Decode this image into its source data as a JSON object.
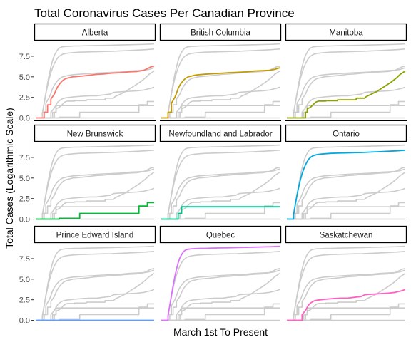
{
  "chart_data": {
    "type": "line",
    "title": "Total Coronavirus Cases Per Canadian Province",
    "xlabel": "March 1st To Present",
    "ylabel": "Total Cases (Logarithmic Scale)",
    "ylim": [
      -0.3,
      9.4
    ],
    "yticks": [
      0.0,
      2.5,
      5.0,
      7.5
    ],
    "ytick_labels": [
      "0.0",
      "2.5",
      "5.0",
      "7.5"
    ],
    "xlim": [
      0,
      70
    ],
    "background_color": "#cccccc",
    "panels": [
      {
        "name": "Alberta",
        "color": "#f8766d",
        "x": [
          0,
          5,
          5,
          7,
          7,
          9,
          9,
          11,
          12,
          13,
          14,
          15,
          16,
          17,
          18,
          20,
          22,
          25,
          28,
          32,
          36,
          40,
          45,
          50,
          55,
          60,
          64,
          66,
          68,
          70
        ],
        "y": [
          0,
          0,
          0.7,
          0.7,
          1.6,
          1.6,
          2.3,
          2.9,
          3.4,
          3.8,
          4.1,
          4.35,
          4.55,
          4.7,
          4.8,
          4.9,
          5.0,
          5.05,
          5.1,
          5.2,
          5.3,
          5.35,
          5.45,
          5.5,
          5.6,
          5.65,
          5.8,
          6.0,
          6.2,
          6.3
        ]
      },
      {
        "name": "British Columbia",
        "color": "#c49a00",
        "x": [
          0,
          4,
          4,
          6,
          6,
          8,
          9,
          10,
          11,
          12,
          13,
          14,
          15,
          16,
          18,
          20,
          22,
          25,
          28,
          32,
          36,
          40,
          45,
          50,
          55,
          60,
          64,
          67,
          70
        ],
        "y": [
          0,
          0,
          0.7,
          0.7,
          1.8,
          2.5,
          3.0,
          3.6,
          4.0,
          4.3,
          4.55,
          4.75,
          4.9,
          5.0,
          5.1,
          5.2,
          5.25,
          5.3,
          5.35,
          5.4,
          5.45,
          5.5,
          5.55,
          5.6,
          5.7,
          5.75,
          5.8,
          5.9,
          6.1
        ]
      },
      {
        "name": "Manitoba",
        "color": "#8da200",
        "x": [
          0,
          11,
          11,
          12,
          12,
          14,
          15,
          16,
          17,
          18,
          19,
          20,
          23,
          23,
          30,
          30,
          40,
          41,
          41,
          46,
          47,
          50,
          53,
          56,
          59,
          62,
          65,
          67,
          70
        ],
        "y": [
          0,
          0,
          0.7,
          0.7,
          1.1,
          1.3,
          1.5,
          1.7,
          1.9,
          2.0,
          2.05,
          2.05,
          2.05,
          2.1,
          2.1,
          2.2,
          2.2,
          2.2,
          2.4,
          2.4,
          2.6,
          2.9,
          3.2,
          3.6,
          4.0,
          4.4,
          4.9,
          5.3,
          5.7
        ]
      },
      {
        "name": "New Brunswick",
        "color": "#00ba38",
        "x": [
          0,
          14,
          14,
          26,
          26,
          61,
          61,
          66,
          66,
          70
        ],
        "y": [
          0,
          0,
          0.1,
          0.1,
          0.7,
          0.7,
          1.6,
          1.6,
          2.0,
          2.0
        ]
      },
      {
        "name": "Newfoundland and Labrador",
        "color": "#00c08b",
        "x": [
          0,
          10,
          10,
          12,
          12,
          70
        ],
        "y": [
          0,
          0,
          0.7,
          0.7,
          1.5,
          1.5
        ]
      },
      {
        "name": "Ontario",
        "color": "#00a9e0",
        "x": [
          0,
          4,
          4,
          5,
          6,
          7,
          8,
          9,
          10,
          11,
          12,
          13,
          14,
          15,
          16,
          18,
          20,
          23,
          26,
          30,
          35,
          40,
          45,
          50,
          55,
          60,
          65,
          70
        ],
        "y": [
          0,
          0,
          0.6,
          1.8,
          2.9,
          3.9,
          4.8,
          5.5,
          6.1,
          6.6,
          7.0,
          7.3,
          7.5,
          7.65,
          7.75,
          7.85,
          7.9,
          7.95,
          8.0,
          8.02,
          8.05,
          8.08,
          8.1,
          8.15,
          8.2,
          8.25,
          8.3,
          8.38
        ]
      },
      {
        "name": "Prince Edward Island",
        "color": "#619cff",
        "x": [
          0,
          70
        ],
        "y": [
          0,
          0
        ]
      },
      {
        "name": "Quebec",
        "color": "#db72fb",
        "x": [
          0,
          4,
          4,
          5,
          6,
          7,
          8,
          9,
          10,
          11,
          12,
          13,
          14,
          15,
          16,
          18,
          20,
          23,
          26,
          30,
          35,
          40,
          45,
          50,
          55,
          60,
          65,
          70
        ],
        "y": [
          0,
          0,
          0.6,
          1.8,
          3.0,
          4.2,
          5.3,
          6.2,
          7.0,
          7.6,
          8.0,
          8.3,
          8.5,
          8.6,
          8.65,
          8.7,
          8.72,
          8.75,
          8.75,
          8.78,
          8.8,
          8.82,
          8.85,
          8.87,
          8.9,
          8.92,
          8.95,
          9.0
        ]
      },
      {
        "name": "Saskatchewan",
        "color": "#ff61c3",
        "x": [
          0,
          9,
          9,
          11,
          12,
          13,
          14,
          15,
          16,
          17,
          18,
          20,
          22,
          25,
          28,
          32,
          36,
          40,
          44,
          46,
          48,
          52,
          56,
          60,
          64,
          66,
          68,
          70
        ],
        "y": [
          0,
          0,
          0.7,
          1.2,
          1.6,
          1.9,
          2.1,
          2.25,
          2.35,
          2.4,
          2.45,
          2.5,
          2.55,
          2.6,
          2.65,
          2.7,
          2.7,
          2.8,
          2.9,
          3.1,
          3.15,
          3.2,
          3.25,
          3.3,
          3.4,
          3.5,
          3.6,
          3.75
        ]
      }
    ]
  }
}
